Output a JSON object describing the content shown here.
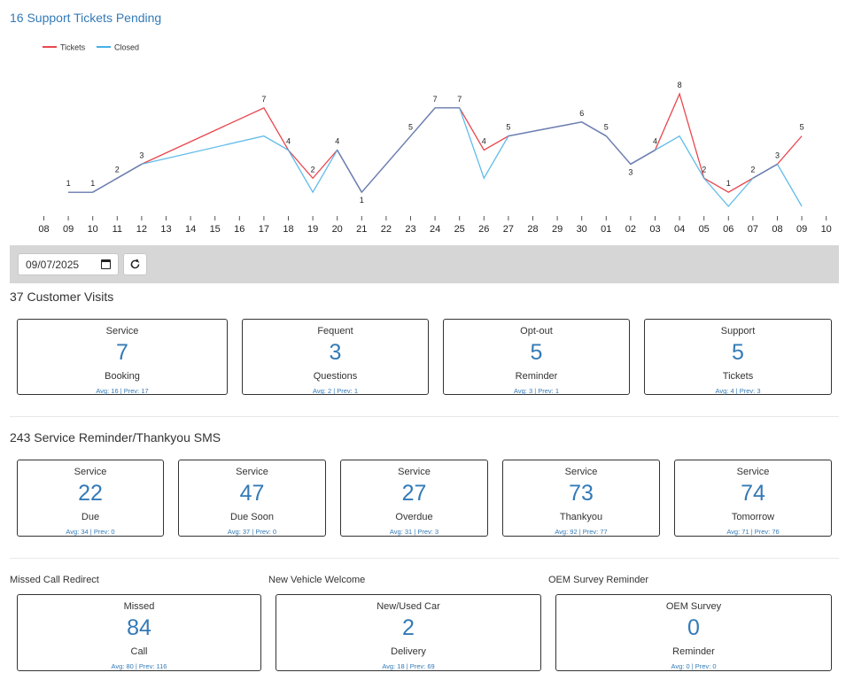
{
  "header": {
    "title": "16 Support Tickets Pending"
  },
  "chart_data": {
    "type": "line",
    "x": [
      "08",
      "09",
      "10",
      "11",
      "12",
      "13",
      "14",
      "15",
      "16",
      "17",
      "18",
      "19",
      "20",
      "21",
      "22",
      "23",
      "24",
      "25",
      "26",
      "27",
      "28",
      "29",
      "30",
      "01",
      "02",
      "03",
      "04",
      "05",
      "06",
      "07",
      "08",
      "09",
      "10"
    ],
    "legend_position": "top-left",
    "series": [
      {
        "name": "Tickets",
        "color": "#e8474d",
        "points": [
          [
            1,
            1
          ],
          [
            2,
            1
          ],
          [
            3,
            2
          ],
          [
            4,
            3
          ],
          [
            9,
            7
          ],
          [
            10,
            4
          ],
          [
            11,
            2
          ],
          [
            12,
            4
          ],
          [
            13,
            1
          ],
          [
            15,
            5
          ],
          [
            16,
            7
          ],
          [
            17,
            7
          ],
          [
            18,
            4
          ],
          [
            19,
            5
          ],
          [
            22,
            6
          ],
          [
            23,
            5
          ],
          [
            24,
            3
          ],
          [
            25,
            4
          ],
          [
            26,
            8
          ],
          [
            27,
            2
          ],
          [
            28,
            1
          ],
          [
            29,
            2
          ],
          [
            30,
            3
          ],
          [
            31,
            5
          ]
        ]
      },
      {
        "name": "Closed",
        "color": "#45b0e6",
        "points": [
          [
            1,
            1
          ],
          [
            2,
            1
          ],
          [
            3,
            2
          ],
          [
            4,
            3
          ],
          [
            9,
            5
          ],
          [
            10,
            4
          ],
          [
            11,
            1
          ],
          [
            12,
            4
          ],
          [
            13,
            1
          ],
          [
            15,
            5
          ],
          [
            16,
            7
          ],
          [
            17,
            7
          ],
          [
            18,
            2
          ],
          [
            19,
            5
          ],
          [
            22,
            6
          ],
          [
            23,
            5
          ],
          [
            24,
            3
          ],
          [
            25,
            4
          ],
          [
            26,
            5
          ],
          [
            27,
            2
          ],
          [
            28,
            0
          ],
          [
            29,
            2
          ],
          [
            30,
            3
          ],
          [
            31,
            0
          ]
        ]
      }
    ],
    "point_labels": [
      {
        "x": 1,
        "y": 1,
        "text": "1"
      },
      {
        "x": 2,
        "y": 1,
        "text": "1"
      },
      {
        "x": 3,
        "y": 2,
        "text": "2"
      },
      {
        "x": 4,
        "y": 3,
        "text": "3"
      },
      {
        "x": 9,
        "y": 7,
        "text": "7"
      },
      {
        "x": 10,
        "y": 4,
        "text": "4"
      },
      {
        "x": 11,
        "y": 2,
        "text": "2"
      },
      {
        "x": 12,
        "y": 4,
        "text": "4"
      },
      {
        "x": 13,
        "y": 1,
        "text": "1",
        "below": true
      },
      {
        "x": 15,
        "y": 5,
        "text": "5"
      },
      {
        "x": 16,
        "y": 7,
        "text": "7"
      },
      {
        "x": 17,
        "y": 7,
        "text": "7"
      },
      {
        "x": 18,
        "y": 4,
        "text": "4"
      },
      {
        "x": 19,
        "y": 5,
        "text": "5"
      },
      {
        "x": 22,
        "y": 6,
        "text": "6"
      },
      {
        "x": 23,
        "y": 5,
        "text": "5"
      },
      {
        "x": 24,
        "y": 3,
        "text": "3",
        "below": true
      },
      {
        "x": 25,
        "y": 4,
        "text": "4"
      },
      {
        "x": 26,
        "y": 8,
        "text": "8"
      },
      {
        "x": 27,
        "y": 2,
        "text": "2"
      },
      {
        "x": 28,
        "y": 1,
        "text": "1"
      },
      {
        "x": 29,
        "y": 2,
        "text": "2"
      },
      {
        "x": 30,
        "y": 3,
        "text": "3"
      },
      {
        "x": 31,
        "y": 5,
        "text": "5"
      }
    ],
    "ylim": [
      0,
      8.5
    ]
  },
  "toolbar": {
    "date_value": "09/07/2025"
  },
  "customer_visits": {
    "title": "37 Customer Visits",
    "cards": [
      {
        "top": "Service",
        "value": "7",
        "bottom": "Booking",
        "avg": "Avg: 16 | Prev: 17"
      },
      {
        "top": "Fequent",
        "value": "3",
        "bottom": "Questions",
        "avg": "Avg: 2 | Prev: 1"
      },
      {
        "top": "Opt-out",
        "value": "5",
        "bottom": "Reminder",
        "avg": "Avg: 3 | Prev: 1"
      },
      {
        "top": "Support",
        "value": "5",
        "bottom": "Tickets",
        "avg": "Avg: 4 | Prev: 3"
      }
    ]
  },
  "sms": {
    "title": "243 Service Reminder/Thankyou SMS",
    "cards": [
      {
        "top": "Service",
        "value": "22",
        "bottom": "Due",
        "avg": "Avg: 34 | Prev: 0"
      },
      {
        "top": "Service",
        "value": "47",
        "bottom": "Due Soon",
        "avg": "Avg: 37 | Prev: 0"
      },
      {
        "top": "Service",
        "value": "27",
        "bottom": "Overdue",
        "avg": "Avg: 31 | Prev: 3"
      },
      {
        "top": "Service",
        "value": "73",
        "bottom": "Thankyou",
        "avg": "Avg: 92 | Prev: 77"
      },
      {
        "top": "Service",
        "value": "74",
        "bottom": "Tomorrow",
        "avg": "Avg: 71 | Prev: 76"
      }
    ]
  },
  "misc": {
    "groups": [
      {
        "label": "Missed Call Redirect",
        "card": {
          "top": "Missed",
          "value": "84",
          "bottom": "Call",
          "avg": "Avg: 80 | Prev: 116"
        }
      },
      {
        "label": "New Vehicle Welcome",
        "card": {
          "top": "New/Used Car",
          "value": "2",
          "bottom": "Delivery",
          "avg": "Avg: 18 | Prev: 69"
        }
      },
      {
        "label": "OEM Survey Reminder",
        "card": {
          "top": "OEM Survey",
          "value": "0",
          "bottom": "Reminder",
          "avg": "Avg: 0 | Prev: 0"
        }
      }
    ]
  }
}
